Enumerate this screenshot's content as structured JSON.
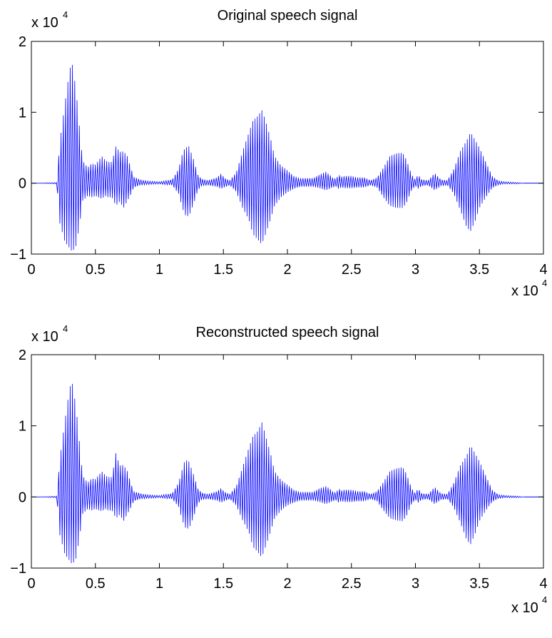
{
  "chart_data": [
    {
      "type": "line",
      "title": "Original speech signal",
      "xlabel": "",
      "ylabel": "",
      "x_multiplier_label": {
        "base": "x 10",
        "exponent": "4"
      },
      "y_multiplier_label": {
        "base": "x 10",
        "exponent": "4"
      },
      "xlim": [
        0,
        4
      ],
      "ylim": [
        -1,
        2
      ],
      "xticks": [
        0,
        0.5,
        1,
        1.5,
        2,
        2.5,
        3,
        3.5,
        4
      ],
      "xtick_labels": [
        "0",
        "0.5",
        "1",
        "1.5",
        "2",
        "2.5",
        "3",
        "3.5",
        "4"
      ],
      "yticks": [
        -1,
        0,
        1,
        2
      ],
      "ytick_labels": [
        "−1",
        "0",
        "1",
        "2"
      ],
      "grid": false,
      "line_color": "#0000ff",
      "series": [
        {
          "style": "speech-waveform envelope (units of 10^4)",
          "x": [
            0.0,
            0.2,
            0.22,
            0.26,
            0.3,
            0.32,
            0.35,
            0.38,
            0.4,
            0.44,
            0.47,
            0.5,
            0.55,
            0.58,
            0.6,
            0.63,
            0.66,
            0.69,
            0.72,
            0.75,
            0.78,
            0.8,
            0.85,
            0.9,
            1.0,
            1.1,
            1.15,
            1.18,
            1.2,
            1.23,
            1.27,
            1.3,
            1.33,
            1.38,
            1.45,
            1.48,
            1.52,
            1.55,
            1.6,
            1.65,
            1.7,
            1.73,
            1.77,
            1.8,
            1.83,
            1.87,
            1.9,
            1.95,
            2.0,
            2.05,
            2.1,
            2.2,
            2.25,
            2.3,
            2.33,
            2.35,
            2.38,
            2.4,
            2.42,
            2.45,
            2.5,
            2.55,
            2.6,
            2.65,
            2.7,
            2.75,
            2.8,
            2.85,
            2.9,
            2.93,
            2.97,
            3.0,
            3.02,
            3.05,
            3.1,
            3.15,
            3.2,
            3.25,
            3.3,
            3.35,
            3.4,
            3.43,
            3.47,
            3.5,
            3.55,
            3.6,
            3.65,
            3.7,
            3.8,
            3.85
          ],
          "y_upper": [
            0.0,
            0.01,
            0.55,
            1.1,
            1.62,
            1.68,
            1.3,
            0.7,
            0.32,
            0.22,
            0.28,
            0.26,
            0.38,
            0.32,
            0.3,
            0.3,
            0.52,
            0.44,
            0.45,
            0.38,
            0.2,
            0.09,
            0.05,
            0.03,
            0.02,
            0.05,
            0.2,
            0.42,
            0.5,
            0.52,
            0.32,
            0.12,
            0.06,
            0.04,
            0.08,
            0.13,
            0.06,
            0.04,
            0.15,
            0.45,
            0.72,
            0.88,
            0.95,
            1.03,
            0.88,
            0.62,
            0.38,
            0.25,
            0.18,
            0.1,
            0.07,
            0.07,
            0.12,
            0.16,
            0.12,
            0.08,
            0.06,
            0.12,
            0.09,
            0.1,
            0.1,
            0.08,
            0.08,
            0.04,
            0.08,
            0.22,
            0.38,
            0.42,
            0.43,
            0.33,
            0.12,
            0.05,
            0.12,
            0.05,
            0.04,
            0.14,
            0.05,
            0.04,
            0.2,
            0.45,
            0.6,
            0.72,
            0.6,
            0.5,
            0.3,
            0.1,
            0.03,
            0.02,
            0.01,
            0.0
          ],
          "y_lower": [
            0.0,
            -0.01,
            -0.55,
            -0.82,
            -0.92,
            -0.97,
            -0.88,
            -0.55,
            -0.25,
            -0.18,
            -0.2,
            -0.18,
            -0.22,
            -0.18,
            -0.2,
            -0.2,
            -0.32,
            -0.26,
            -0.35,
            -0.25,
            -0.15,
            -0.06,
            -0.03,
            -0.02,
            -0.01,
            -0.03,
            -0.15,
            -0.35,
            -0.45,
            -0.47,
            -0.28,
            -0.1,
            -0.04,
            -0.03,
            -0.05,
            -0.08,
            -0.05,
            -0.03,
            -0.12,
            -0.35,
            -0.52,
            -0.72,
            -0.8,
            -0.86,
            -0.72,
            -0.5,
            -0.32,
            -0.2,
            -0.13,
            -0.08,
            -0.05,
            -0.05,
            -0.07,
            -0.1,
            -0.08,
            -0.06,
            -0.05,
            -0.08,
            -0.06,
            -0.07,
            -0.07,
            -0.06,
            -0.06,
            -0.03,
            -0.06,
            -0.2,
            -0.32,
            -0.35,
            -0.35,
            -0.28,
            -0.1,
            -0.04,
            -0.08,
            -0.04,
            -0.03,
            -0.1,
            -0.04,
            -0.03,
            -0.15,
            -0.38,
            -0.62,
            -0.68,
            -0.52,
            -0.35,
            -0.2,
            -0.07,
            -0.02,
            -0.01,
            -0.01,
            0.0
          ]
        }
      ]
    },
    {
      "type": "line",
      "title": "Reconstructed speech signal",
      "xlabel": "",
      "ylabel": "",
      "x_multiplier_label": {
        "base": "x 10",
        "exponent": "4"
      },
      "y_multiplier_label": {
        "base": "x 10",
        "exponent": "4"
      },
      "xlim": [
        0,
        4
      ],
      "ylim": [
        -1,
        2
      ],
      "xticks": [
        0,
        0.5,
        1,
        1.5,
        2,
        2.5,
        3,
        3.5,
        4
      ],
      "xtick_labels": [
        "0",
        "0.5",
        "1",
        "1.5",
        "2",
        "2.5",
        "3",
        "3.5",
        "4"
      ],
      "yticks": [
        -1,
        0,
        1,
        2
      ],
      "ytick_labels": [
        "−1",
        "0",
        "1",
        "2"
      ],
      "grid": false,
      "line_color": "#0000ff",
      "series": [
        {
          "style": "speech-waveform envelope (units of 10^4)",
          "x": [
            0.0,
            0.2,
            0.22,
            0.26,
            0.3,
            0.32,
            0.35,
            0.38,
            0.4,
            0.44,
            0.47,
            0.5,
            0.55,
            0.58,
            0.6,
            0.63,
            0.66,
            0.69,
            0.72,
            0.75,
            0.78,
            0.8,
            0.85,
            0.9,
            1.0,
            1.1,
            1.15,
            1.18,
            1.2,
            1.23,
            1.27,
            1.3,
            1.33,
            1.38,
            1.45,
            1.48,
            1.52,
            1.55,
            1.6,
            1.65,
            1.7,
            1.73,
            1.77,
            1.8,
            1.83,
            1.87,
            1.9,
            1.95,
            2.0,
            2.05,
            2.1,
            2.2,
            2.25,
            2.3,
            2.33,
            2.35,
            2.38,
            2.4,
            2.42,
            2.45,
            2.5,
            2.55,
            2.6,
            2.65,
            2.7,
            2.75,
            2.8,
            2.85,
            2.9,
            2.93,
            2.97,
            3.0,
            3.02,
            3.05,
            3.1,
            3.15,
            3.2,
            3.25,
            3.3,
            3.35,
            3.4,
            3.43,
            3.47,
            3.5,
            3.55,
            3.6,
            3.65,
            3.7,
            3.8,
            3.85
          ],
          "y_upper": [
            0.0,
            0.01,
            0.5,
            1.05,
            1.55,
            1.6,
            1.25,
            0.68,
            0.3,
            0.2,
            0.26,
            0.25,
            0.36,
            0.3,
            0.28,
            0.28,
            0.62,
            0.44,
            0.45,
            0.36,
            0.18,
            0.08,
            0.05,
            0.03,
            0.02,
            0.05,
            0.2,
            0.4,
            0.52,
            0.5,
            0.3,
            0.12,
            0.06,
            0.04,
            0.08,
            0.12,
            0.06,
            0.04,
            0.15,
            0.42,
            0.7,
            0.85,
            0.93,
            1.05,
            0.86,
            0.6,
            0.36,
            0.24,
            0.17,
            0.1,
            0.07,
            0.07,
            0.12,
            0.15,
            0.12,
            0.08,
            0.06,
            0.12,
            0.09,
            0.1,
            0.1,
            0.08,
            0.08,
            0.04,
            0.08,
            0.21,
            0.36,
            0.4,
            0.42,
            0.33,
            0.12,
            0.05,
            0.12,
            0.05,
            0.04,
            0.14,
            0.05,
            0.04,
            0.2,
            0.44,
            0.58,
            0.73,
            0.6,
            0.5,
            0.3,
            0.1,
            0.03,
            0.02,
            0.01,
            0.0
          ],
          "y_lower": [
            0.0,
            -0.01,
            -0.52,
            -0.8,
            -0.9,
            -0.95,
            -0.86,
            -0.53,
            -0.24,
            -0.17,
            -0.19,
            -0.17,
            -0.2,
            -0.17,
            -0.19,
            -0.19,
            -0.3,
            -0.25,
            -0.34,
            -0.24,
            -0.14,
            -0.06,
            -0.03,
            -0.02,
            -0.01,
            -0.03,
            -0.14,
            -0.33,
            -0.43,
            -0.45,
            -0.27,
            -0.1,
            -0.04,
            -0.03,
            -0.05,
            -0.08,
            -0.05,
            -0.03,
            -0.12,
            -0.33,
            -0.5,
            -0.7,
            -0.78,
            -0.85,
            -0.7,
            -0.48,
            -0.3,
            -0.19,
            -0.12,
            -0.08,
            -0.05,
            -0.05,
            -0.07,
            -0.1,
            -0.08,
            -0.06,
            -0.05,
            -0.08,
            -0.06,
            -0.07,
            -0.07,
            -0.06,
            -0.06,
            -0.03,
            -0.06,
            -0.19,
            -0.3,
            -0.33,
            -0.34,
            -0.27,
            -0.1,
            -0.04,
            -0.08,
            -0.04,
            -0.03,
            -0.1,
            -0.04,
            -0.03,
            -0.15,
            -0.36,
            -0.6,
            -0.67,
            -0.5,
            -0.34,
            -0.19,
            -0.07,
            -0.02,
            -0.01,
            -0.01,
            0.0
          ]
        }
      ]
    }
  ]
}
